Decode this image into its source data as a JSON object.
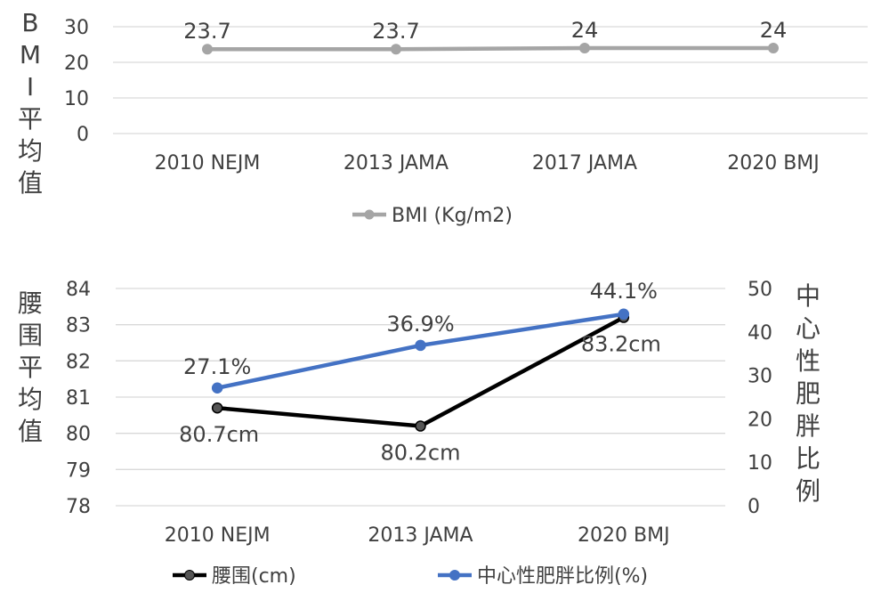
{
  "chart_data": [
    {
      "type": "line",
      "categories": [
        "2010 NEJM",
        "2013 JAMA",
        "2017 JAMA",
        "2020 BMJ"
      ],
      "ylabel": "BMI平均值",
      "ylim": [
        0,
        30
      ],
      "yticks": [
        "0",
        "10",
        "20",
        "30"
      ],
      "grid": true,
      "legend": "bottom",
      "series": [
        {
          "name": "BMI (Kg/m2)",
          "values": [
            23.7,
            23.7,
            24,
            24
          ],
          "labels": [
            "23.7",
            "23.7",
            "24",
            "24"
          ],
          "color": "#a5a5a5"
        }
      ]
    },
    {
      "type": "line",
      "categories": [
        "2010 NEJM",
        "2013 JAMA",
        "2020 BMJ"
      ],
      "ylabel": "腰围平均值",
      "y2label": "中心性肥胖比例",
      "ylim": [
        78,
        84
      ],
      "y2lim": [
        0,
        50
      ],
      "yticks": [
        "78",
        "79",
        "80",
        "81",
        "82",
        "83",
        "84"
      ],
      "y2ticks": [
        "0",
        "10",
        "20",
        "30",
        "40",
        "50"
      ],
      "grid": true,
      "legend": "bottom",
      "series": [
        {
          "name": "腰围(cm)",
          "axis": "left",
          "values": [
            80.7,
            80.2,
            83.2
          ],
          "labels": [
            "80.7cm",
            "80.2cm",
            "83.2cm"
          ],
          "color": "#000000"
        },
        {
          "name": "中心性肥胖比例(%)",
          "axis": "right",
          "values": [
            27.1,
            36.9,
            44.1
          ],
          "labels": [
            "27.1%",
            "36.9%",
            "44.1%"
          ],
          "color": "#4472c4"
        }
      ]
    }
  ]
}
